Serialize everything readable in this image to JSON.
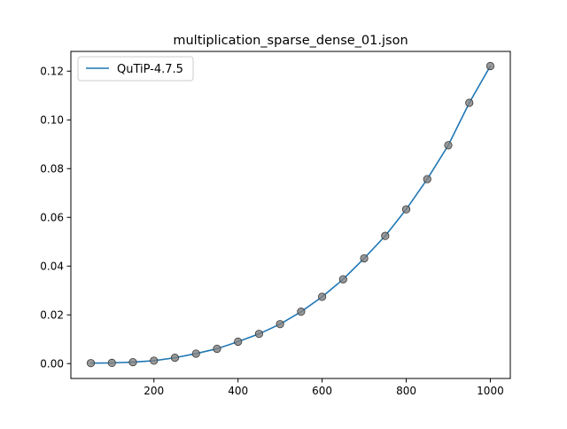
{
  "chart_data": {
    "type": "line",
    "title": "multiplication_sparse_dense_01.json",
    "xlabel": "",
    "ylabel": "",
    "xlim": [
      2.5,
      1047.5
    ],
    "ylim": [
      -0.0061,
      0.1281
    ],
    "x_ticks": [
      200,
      400,
      600,
      800,
      1000
    ],
    "y_ticks": [
      0.0,
      0.02,
      0.04,
      0.06,
      0.08,
      0.1,
      0.12
    ],
    "x_tick_labels": [
      "200",
      "400",
      "600",
      "800",
      "1000"
    ],
    "y_tick_labels": [
      "0.00",
      "0.02",
      "0.04",
      "0.06",
      "0.08",
      "0.10",
      "0.12"
    ],
    "grid": false,
    "legend": {
      "position": "top-left",
      "entries": [
        "QuTiP-4.7.5"
      ]
    },
    "series": [
      {
        "name": "QuTiP-4.7.5",
        "color": "#1f77b4",
        "marker_color": "#808080",
        "x": [
          50,
          100,
          150,
          200,
          250,
          300,
          350,
          400,
          450,
          500,
          550,
          600,
          650,
          700,
          750,
          800,
          850,
          900,
          950,
          1000
        ],
        "y": [
          0.0002,
          0.0003,
          0.0006,
          0.0012,
          0.0024,
          0.0041,
          0.0061,
          0.009,
          0.0122,
          0.0162,
          0.0213,
          0.0274,
          0.0346,
          0.0432,
          0.0524,
          0.0633,
          0.0757,
          0.0896,
          0.107,
          0.1221
        ]
      }
    ]
  }
}
